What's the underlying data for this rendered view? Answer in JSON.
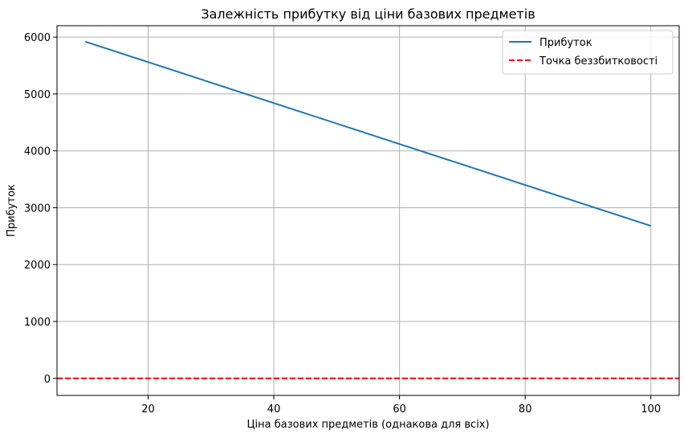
{
  "chart_data": {
    "type": "line",
    "title": "Залежність прибутку від ціни базових предметів",
    "xlabel": "Ціна базових предметів (однакова для всіх)",
    "ylabel": "Прибуток",
    "xlim": [
      5.5,
      104.5
    ],
    "ylim": [
      -300,
      6200
    ],
    "xticks": [
      20,
      40,
      60,
      80,
      100
    ],
    "yticks": [
      0,
      1000,
      2000,
      3000,
      4000,
      5000,
      6000
    ],
    "grid": true,
    "legend_position": "top-right",
    "series": [
      {
        "name": "Прибуток",
        "color": "#1f77b4",
        "style": "solid",
        "x": [
          10,
          100
        ],
        "y": [
          5920,
          2680
        ]
      }
    ],
    "hlines": [
      {
        "name": "Точка беззбитковості",
        "y": 0,
        "color": "#ff0000",
        "style": "dashed"
      }
    ]
  }
}
